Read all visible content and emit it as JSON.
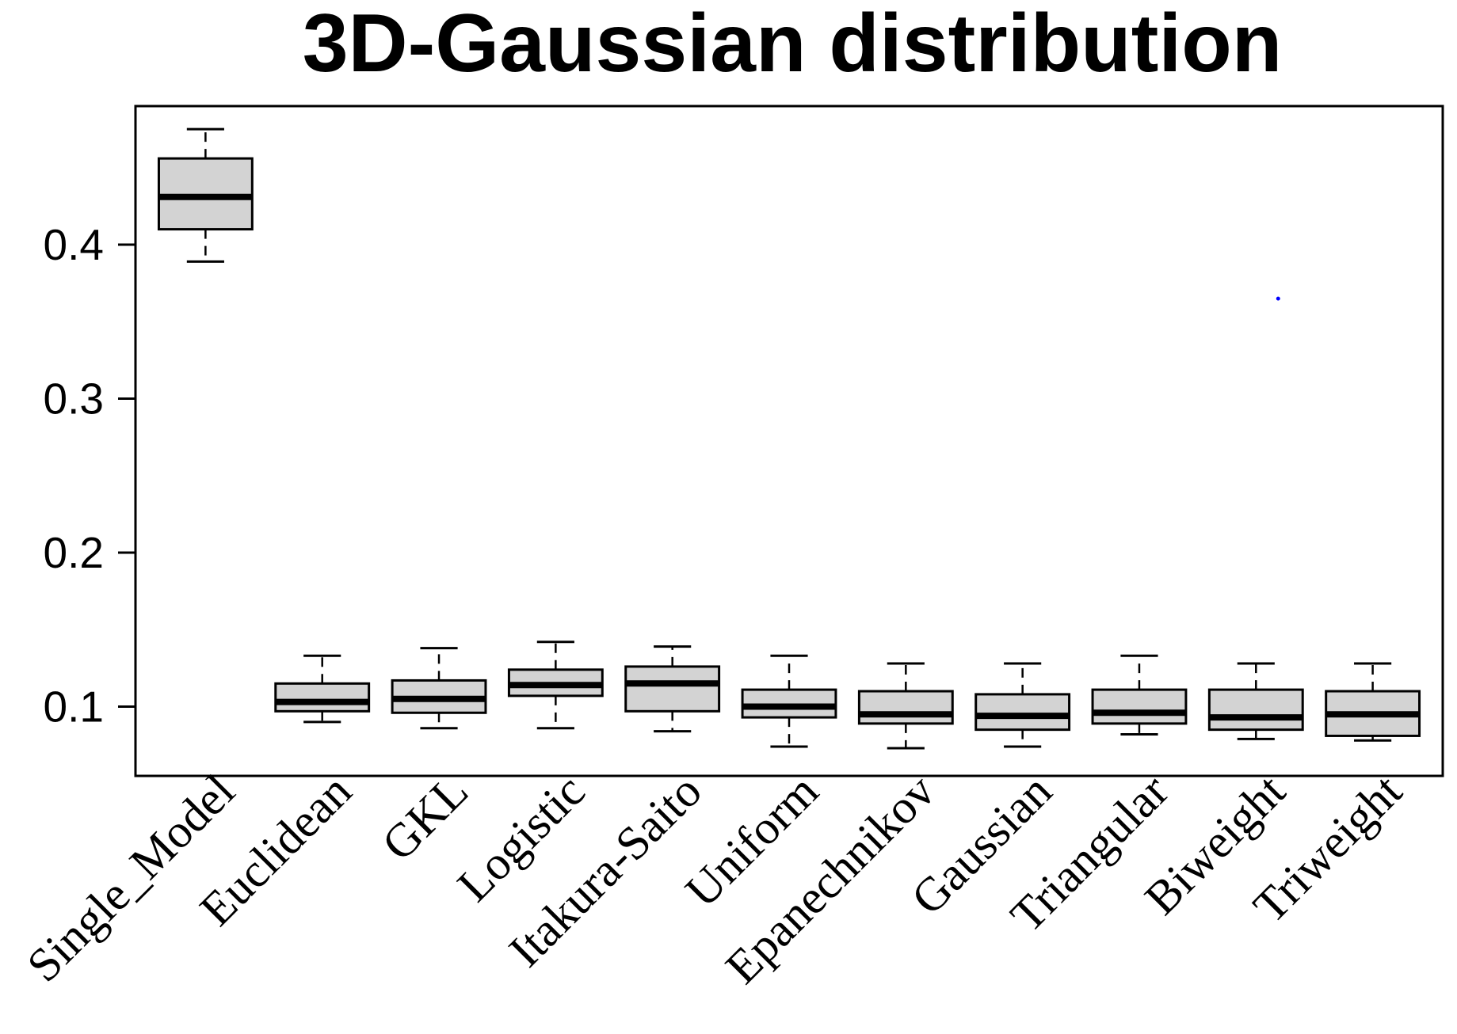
{
  "chart_data": {
    "type": "boxplot",
    "title": "3D-Gaussian distribution",
    "xlabel": "",
    "ylabel": "",
    "ylim": [
      0.055,
      0.49
    ],
    "yticks": [
      "0.1",
      "0.2",
      "0.3",
      "0.4"
    ],
    "grid": false,
    "legend": "none",
    "box_fill": "#d3d3d3",
    "line_color": "#000000",
    "categories": [
      "Single_Model",
      "Euclidean",
      "GKL",
      "Logistic",
      "Itakura-Saito",
      "Uniform",
      "Epanechnikov",
      "Gaussian",
      "Triangular",
      "Biweight",
      "Triweight"
    ],
    "boxes": [
      {
        "min": 0.389,
        "q1": 0.41,
        "median": 0.431,
        "q3": 0.456,
        "max": 0.475
      },
      {
        "min": 0.09,
        "q1": 0.097,
        "median": 0.103,
        "q3": 0.115,
        "max": 0.133
      },
      {
        "min": 0.086,
        "q1": 0.096,
        "median": 0.105,
        "q3": 0.117,
        "max": 0.138
      },
      {
        "min": 0.086,
        "q1": 0.107,
        "median": 0.114,
        "q3": 0.124,
        "max": 0.142
      },
      {
        "min": 0.084,
        "q1": 0.097,
        "median": 0.115,
        "q3": 0.126,
        "max": 0.139
      },
      {
        "min": 0.074,
        "q1": 0.093,
        "median": 0.1,
        "q3": 0.111,
        "max": 0.133
      },
      {
        "min": 0.073,
        "q1": 0.089,
        "median": 0.095,
        "q3": 0.11,
        "max": 0.128
      },
      {
        "min": 0.074,
        "q1": 0.085,
        "median": 0.094,
        "q3": 0.108,
        "max": 0.128
      },
      {
        "min": 0.082,
        "q1": 0.089,
        "median": 0.096,
        "q3": 0.111,
        "max": 0.133
      },
      {
        "min": 0.079,
        "q1": 0.085,
        "median": 0.093,
        "q3": 0.111,
        "max": 0.128
      },
      {
        "min": 0.078,
        "q1": 0.081,
        "median": 0.095,
        "q3": 0.11,
        "max": 0.128
      }
    ],
    "stray_point": {
      "category": "Biweight",
      "y": 0.365,
      "color": "#0000ff"
    }
  }
}
